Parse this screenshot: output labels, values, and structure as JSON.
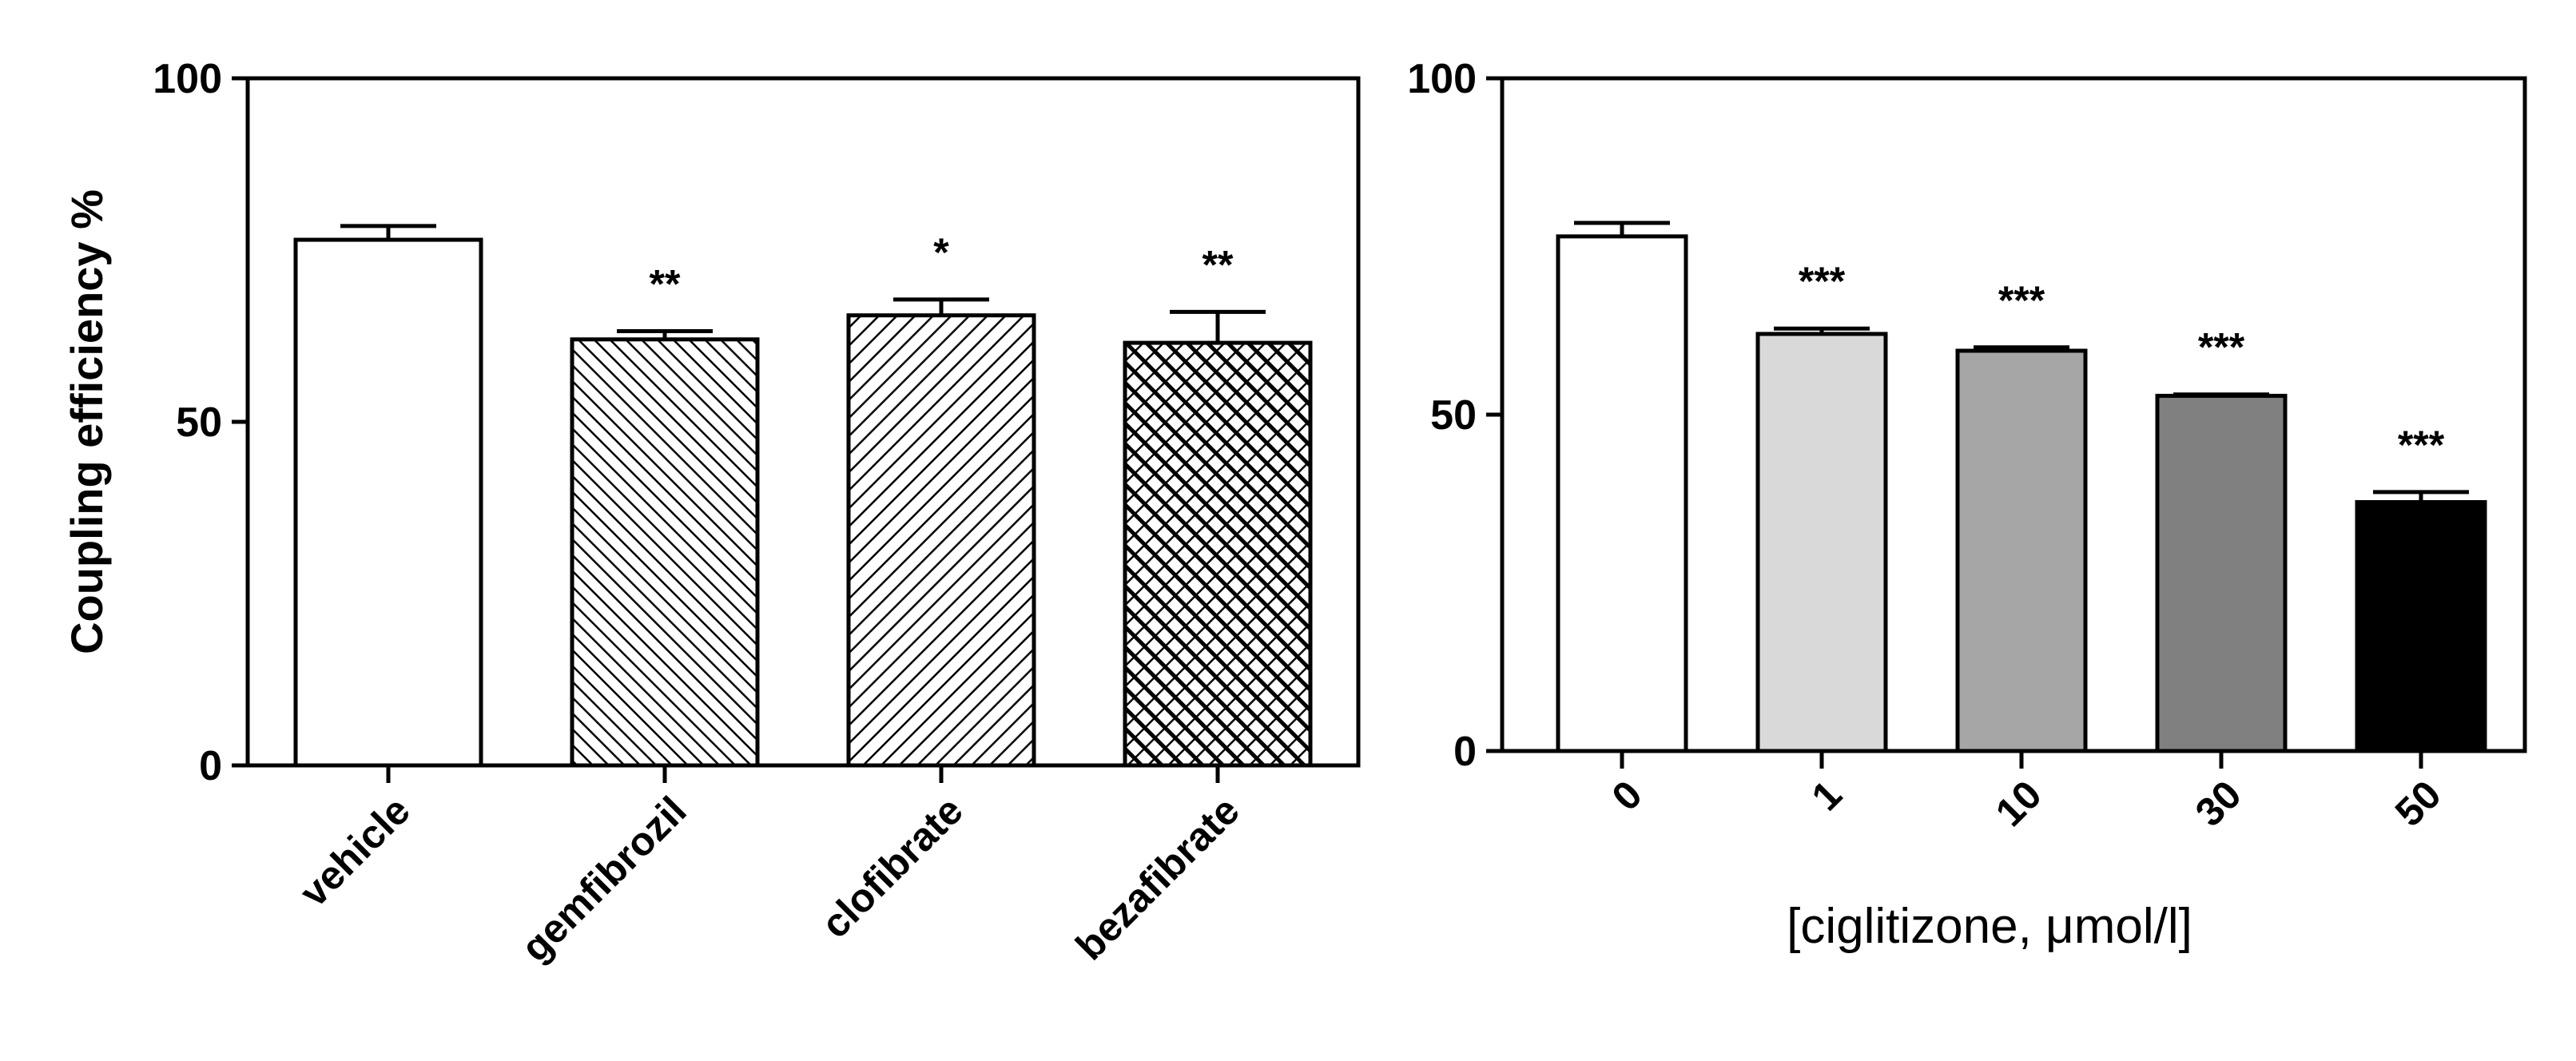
{
  "chart_data": [
    {
      "type": "bar",
      "title": "",
      "xlabel": "",
      "ylabel": "Coupling efficiency %",
      "ylim": [
        0,
        100
      ],
      "yticks": [
        "0",
        "50",
        "100"
      ],
      "categories": [
        "vehicle",
        "gemfibrozil",
        "clofibrate",
        "bezafibrate"
      ],
      "values": [
        76.5,
        62,
        65.5,
        61.5
      ],
      "errors": [
        2,
        1.2,
        2.3,
        4.5
      ],
      "significance": [
        "",
        "**",
        "*",
        "**"
      ],
      "fills": [
        "white",
        "hatch-backslash",
        "hatch-slash",
        "hatch-crosshatch"
      ],
      "grid": false
    },
    {
      "type": "bar",
      "title": "",
      "xlabel": "[ciglitizone, μmol/l]",
      "ylabel": "",
      "ylim": [
        0,
        100
      ],
      "yticks": [
        "0",
        "50",
        "100"
      ],
      "categories": [
        "0",
        "1",
        "10",
        "30",
        "50"
      ],
      "values": [
        76.5,
        62,
        59.5,
        52.8,
        37
      ],
      "errors": [
        2,
        0.8,
        0.5,
        0.2,
        1.5
      ],
      "significance": [
        "",
        "***",
        "***",
        "***",
        "***"
      ],
      "colors": [
        "#ffffff",
        "#d9d9d9",
        "#a6a6a6",
        "#808080",
        "#000000"
      ],
      "grid": false
    }
  ]
}
